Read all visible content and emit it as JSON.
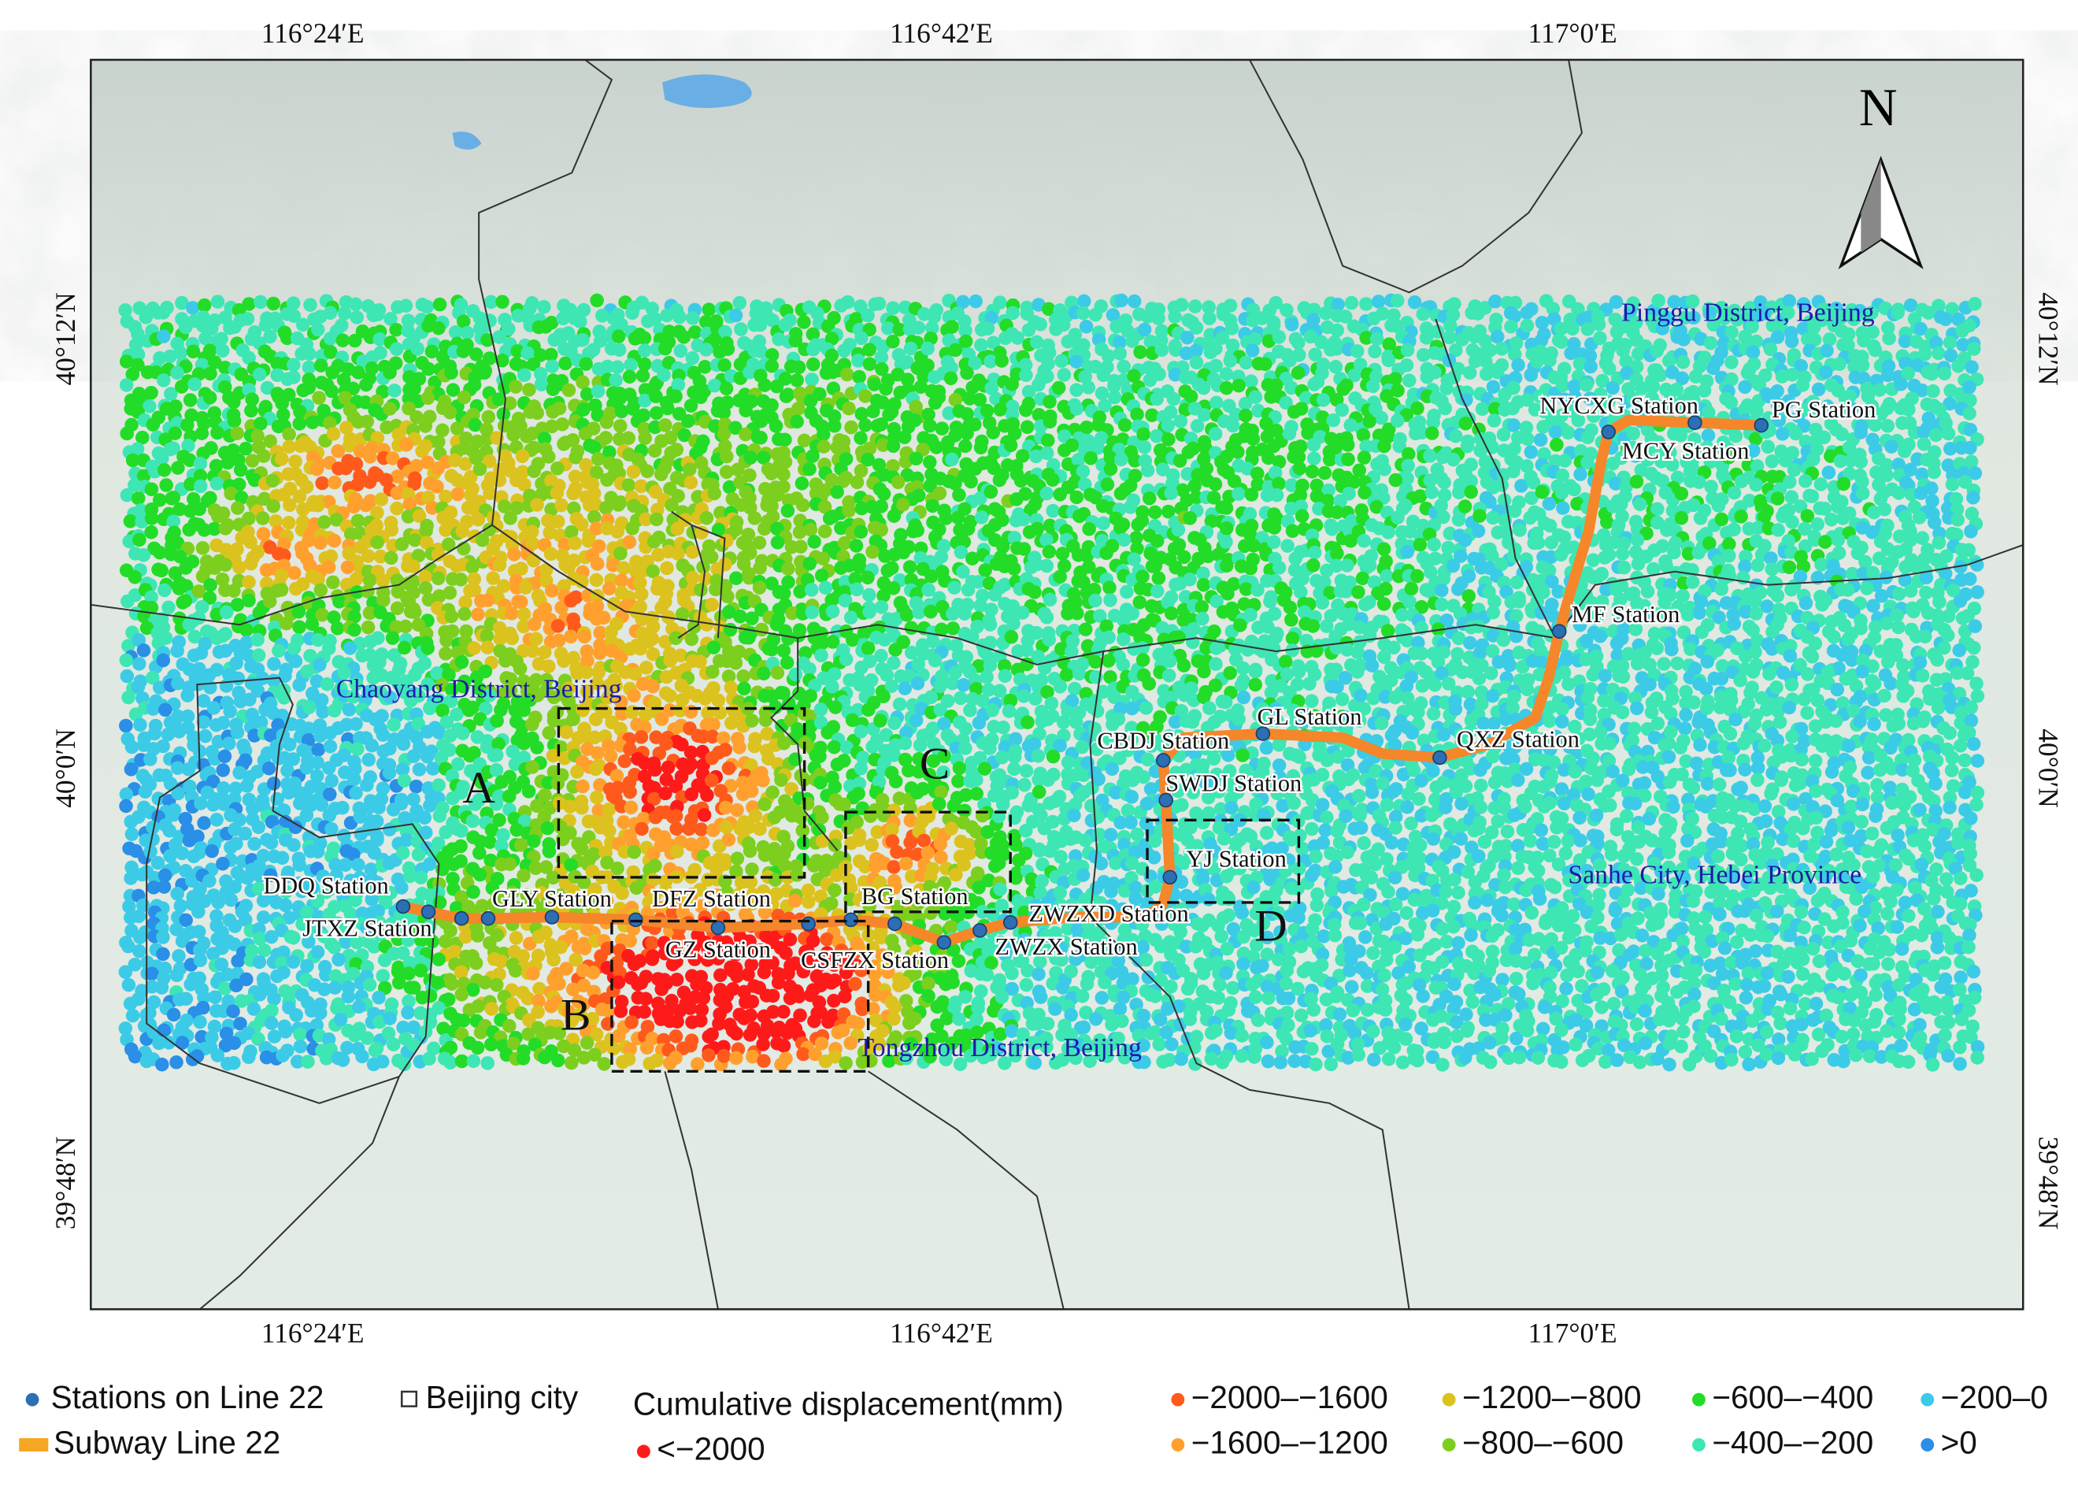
{
  "axes": {
    "top": [
      "116°24′E",
      "116°42′E",
      "117°0′E"
    ],
    "bottom": [
      "116°24′E",
      "116°42′E",
      "117°0′E"
    ],
    "left": [
      "40°12′N",
      "40°0′N",
      "39°48′N"
    ],
    "right": [
      "40°12′N",
      "40°0′N",
      "39°48′N"
    ]
  },
  "north": "N",
  "regions": [
    "Pinggu District, Beijing",
    "Chaoyang District, Beijing",
    "Sanhe City, Hebei Province",
    "Tongzhou District, Beijing"
  ],
  "boxes": [
    "A",
    "B",
    "C",
    "D"
  ],
  "stations": [
    "DDQ Station",
    "JTXZ Station",
    "GLY Station",
    "DFZ Station",
    "GZ Station",
    "CSFZX Station",
    "BG Station",
    "ZWZXD Station",
    "ZWZX Station",
    "CBDJ Station",
    "SWDJ Station",
    "YJ Station",
    "GL Station",
    "QXZ Station",
    "MF Station",
    "NYCXG Station",
    "MCY Station",
    "PG Station"
  ],
  "legend": {
    "stations": "Stations on Line 22",
    "city": "Beijing city",
    "line": "Subway Line 22",
    "title": "Cumulative displacement(mm)",
    "classes": [
      {
        "label": ">0",
        "color": "#2a8fe6"
      },
      {
        "label": "−200–0",
        "color": "#3ccbe6"
      },
      {
        "label": "−400–−200",
        "color": "#3ee6b4"
      },
      {
        "label": "−600–−400",
        "color": "#22dc28"
      },
      {
        "label": "−800–−600",
        "color": "#7ccf1e"
      },
      {
        "label": "−1200–−800",
        "color": "#dcc21e"
      },
      {
        "label": "−1600–−1200",
        "color": "#ffa02e"
      },
      {
        "label": "−2000–−1600",
        "color": "#ff5a1c"
      },
      {
        "label": "<−2000",
        "color": "#ff1a1a"
      }
    ]
  }
}
